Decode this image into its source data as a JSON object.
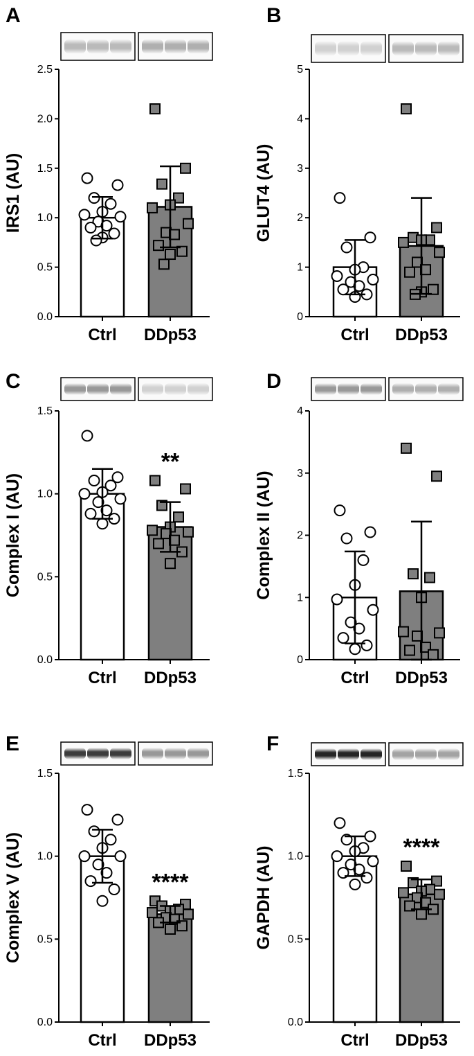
{
  "chart_data": [
    {
      "type": "bar",
      "panel": "A",
      "ylabel": "IRS1 (AU)",
      "categories": [
        "Ctrl",
        "DDp53"
      ],
      "ylim": [
        0,
        2.5
      ],
      "yticks": [
        0.0,
        0.5,
        1.0,
        1.5,
        2.0,
        2.5
      ],
      "ytick_labels": [
        "0.0",
        "0.5",
        "1.0",
        "1.5",
        "2.0",
        "2.5"
      ],
      "means": [
        1.0,
        1.11
      ],
      "sd": [
        0.21,
        0.41
      ],
      "points": [
        [
          1.4,
          1.33,
          1.2,
          1.14,
          1.06,
          1.03,
          1.01,
          0.96,
          0.92,
          0.9,
          0.84,
          0.8,
          0.77
        ],
        [
          2.1,
          1.5,
          1.34,
          1.2,
          1.13,
          1.1,
          0.94,
          0.85,
          0.83,
          0.72,
          0.66,
          0.63,
          0.53
        ]
      ],
      "significance": "",
      "blot": {
        "ctrl_intensity": 0.3,
        "ddp53_intensity": 0.35
      }
    },
    {
      "type": "bar",
      "panel": "B",
      "ylabel": "GLUT4 (AU)",
      "categories": [
        "Ctrl",
        "DDp53"
      ],
      "ylim": [
        0,
        5
      ],
      "yticks": [
        0,
        1,
        2,
        3,
        4,
        5
      ],
      "ytick_labels": [
        "0",
        "1",
        "2",
        "3",
        "4",
        "5"
      ],
      "means": [
        1.0,
        1.43
      ],
      "sd": [
        0.55,
        0.97
      ],
      "points": [
        [
          2.4,
          1.6,
          1.4,
          1.0,
          0.95,
          0.82,
          0.75,
          0.7,
          0.62,
          0.55,
          0.45,
          0.4
        ],
        [
          4.2,
          1.8,
          1.6,
          1.55,
          1.55,
          1.5,
          1.3,
          1.1,
          0.95,
          0.9,
          0.55,
          0.5,
          0.45
        ]
      ],
      "significance": "",
      "blot": {
        "ctrl_intensity": 0.2,
        "ddp53_intensity": 0.3
      }
    },
    {
      "type": "bar",
      "panel": "C",
      "ylabel": "Complex I (AU)",
      "categories": [
        "Ctrl",
        "DDp53"
      ],
      "ylim": [
        0,
        1.5
      ],
      "yticks": [
        0.0,
        0.5,
        1.0,
        1.5
      ],
      "ytick_labels": [
        "0.0",
        "0.5",
        "1.0",
        "1.5"
      ],
      "means": [
        1.0,
        0.8
      ],
      "sd": [
        0.15,
        0.15
      ],
      "points": [
        [
          1.35,
          1.1,
          1.08,
          1.05,
          1.01,
          1.0,
          0.97,
          0.95,
          0.9,
          0.88,
          0.85,
          0.82
        ],
        [
          1.08,
          1.03,
          0.93,
          0.86,
          0.8,
          0.78,
          0.77,
          0.76,
          0.72,
          0.7,
          0.65,
          0.58
        ]
      ],
      "significance": "**",
      "blot": {
        "ctrl_intensity": 0.45,
        "ddp53_intensity": 0.2
      }
    },
    {
      "type": "bar",
      "panel": "D",
      "ylabel": "Complex II (AU)",
      "categories": [
        "Ctrl",
        "DDp53"
      ],
      "ylim": [
        0,
        4
      ],
      "yticks": [
        0,
        1,
        2,
        3,
        4
      ],
      "ytick_labels": [
        "0",
        "1",
        "2",
        "3",
        "4"
      ],
      "means": [
        1.0,
        1.1
      ],
      "sd": [
        0.74,
        1.12
      ],
      "points": [
        [
          2.4,
          2.05,
          1.95,
          1.6,
          1.2,
          0.97,
          0.8,
          0.6,
          0.5,
          0.35,
          0.23,
          0.17
        ],
        [
          3.4,
          2.95,
          1.38,
          1.32,
          1.0,
          0.45,
          0.43,
          0.38,
          0.2,
          0.15,
          0.08
        ]
      ],
      "significance": "",
      "blot": {
        "ctrl_intensity": 0.45,
        "ddp53_intensity": 0.35
      }
    },
    {
      "type": "bar",
      "panel": "E",
      "ylabel": "Complex V (AU)",
      "categories": [
        "Ctrl",
        "DDp53"
      ],
      "ylim": [
        0,
        1.5
      ],
      "yticks": [
        0.0,
        0.5,
        1.0,
        1.5
      ],
      "ytick_labels": [
        "0.0",
        "0.5",
        "1.0",
        "1.5"
      ],
      "means": [
        1.0,
        0.65
      ],
      "sd": [
        0.16,
        0.05
      ],
      "points": [
        [
          1.28,
          1.22,
          1.15,
          1.1,
          1.05,
          1.0,
          1.0,
          0.95,
          0.9,
          0.85,
          0.8,
          0.73
        ],
        [
          0.73,
          0.71,
          0.7,
          0.68,
          0.67,
          0.66,
          0.65,
          0.63,
          0.62,
          0.6,
          0.58,
          0.56
        ]
      ],
      "significance": "****",
      "blot": {
        "ctrl_intensity": 0.85,
        "ddp53_intensity": 0.45
      }
    },
    {
      "type": "bar",
      "panel": "F",
      "ylabel": "GAPDH (AU)",
      "categories": [
        "Ctrl",
        "DDp53"
      ],
      "ylim": [
        0,
        1.5
      ],
      "yticks": [
        0.0,
        0.5,
        1.0,
        1.5
      ],
      "ytick_labels": [
        "0.0",
        "0.5",
        "1.0",
        "1.5"
      ],
      "means": [
        1.0,
        0.77
      ],
      "sd": [
        0.12,
        0.09
      ],
      "points": [
        [
          1.2,
          1.12,
          1.1,
          1.05,
          1.03,
          1.0,
          0.97,
          0.95,
          0.92,
          0.9,
          0.87,
          0.83
        ],
        [
          0.94,
          0.85,
          0.84,
          0.8,
          0.79,
          0.78,
          0.77,
          0.75,
          0.72,
          0.7,
          0.68,
          0.65
        ]
      ],
      "significance": "****",
      "blot": {
        "ctrl_intensity": 0.95,
        "ddp53_intensity": 0.4
      }
    }
  ],
  "colors": {
    "ctrl_bar": "#ffffff",
    "ddp53_bar": "#7f7f7f",
    "ctrl_marker": "#ffffff",
    "ddp53_marker": "#7f7f7f",
    "stroke": "#000000"
  }
}
